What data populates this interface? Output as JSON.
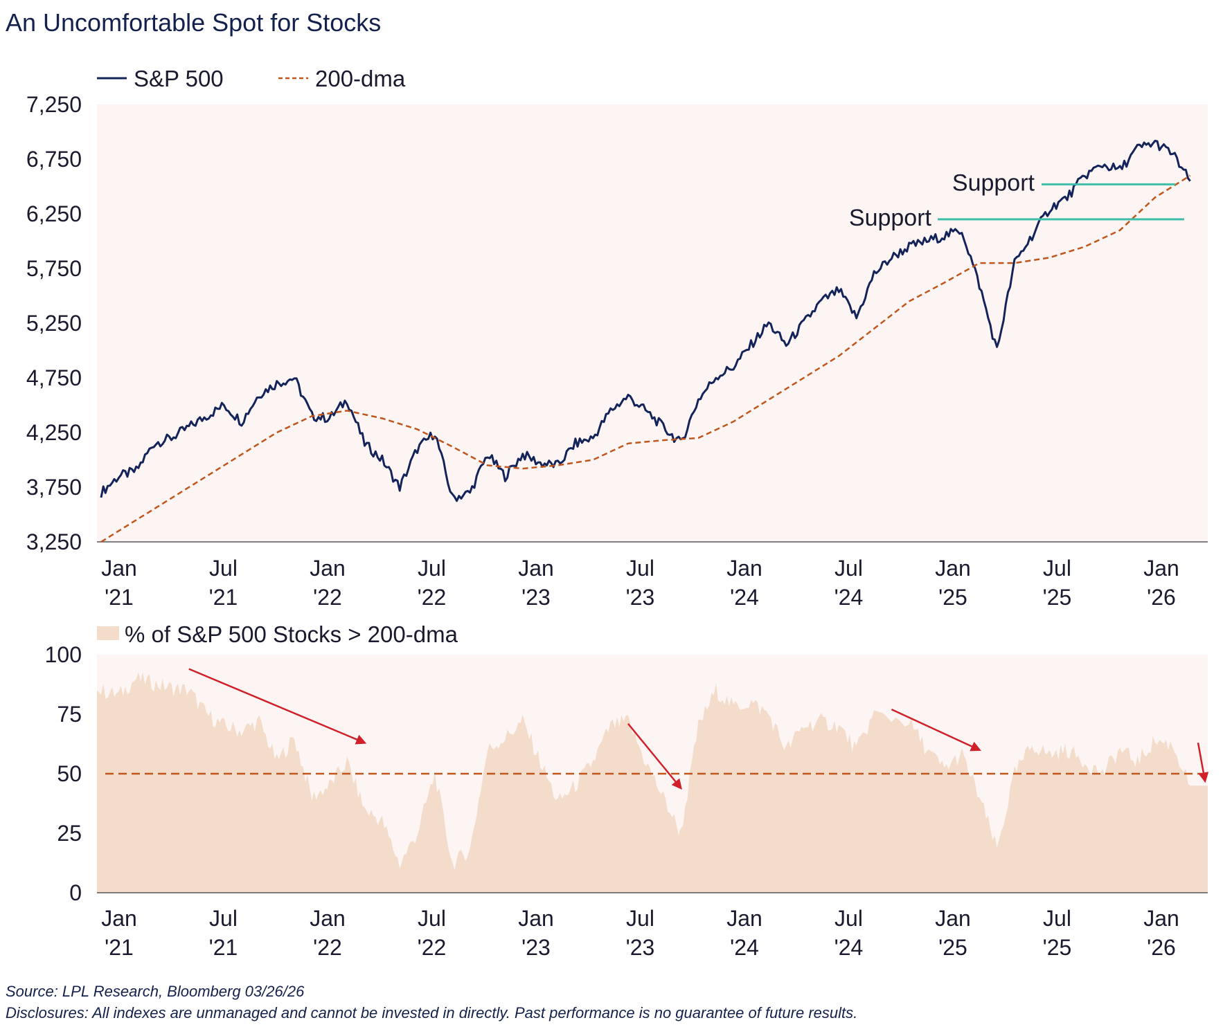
{
  "title": "An Uncomfortable Spot for Stocks",
  "source": "Source: LPL Research, Bloomberg 03/26/26",
  "disclaimer": "Disclosures: All indexes are unmanaged and cannot be invested in directly. Past performance is no guarantee of future results.",
  "colors": {
    "sp500": "#14245a",
    "dma": "#c0561c",
    "support": "#3dbfa8",
    "area": "#f3dcca",
    "plot_bg": "#fcf5f3",
    "arrow": "#d0202a"
  },
  "chart_data": [
    {
      "type": "line",
      "legend": [
        "S&P 500",
        "200-dma"
      ],
      "legend_position": "top-left",
      "y_ticks": [
        "3,250",
        "3,750",
        "4,250",
        "4,750",
        "5,250",
        "5,750",
        "6,250",
        "6,750",
        "7,250"
      ],
      "ylim": [
        3250,
        7250
      ],
      "x_ticks": [
        {
          "m": "Jan",
          "y": "'21"
        },
        {
          "m": "Jul",
          "y": "'21"
        },
        {
          "m": "Jan",
          "y": "'22"
        },
        {
          "m": "Jul",
          "y": "'22"
        },
        {
          "m": "Jan",
          "y": "'23"
        },
        {
          "m": "Jul",
          "y": "'23"
        },
        {
          "m": "Jan",
          "y": "'24"
        },
        {
          "m": "Jul",
          "y": "'24"
        },
        {
          "m": "Jan",
          "y": "'25"
        },
        {
          "m": "Jul",
          "y": "'25"
        },
        {
          "m": "Jan",
          "y": "'26"
        }
      ],
      "xlim": [
        "2021-01",
        "2026-04"
      ],
      "grid": false,
      "series": [
        {
          "name": "S&P 500",
          "x": [
            "2021-01",
            "2021-02",
            "2021-03",
            "2021-04",
            "2021-05",
            "2021-06",
            "2021-07",
            "2021-08",
            "2021-09",
            "2021-10",
            "2021-11",
            "2021-12",
            "2022-01",
            "2022-02",
            "2022-03",
            "2022-04",
            "2022-05",
            "2022-06",
            "2022-07",
            "2022-08",
            "2022-09",
            "2022-10",
            "2022-11",
            "2022-12",
            "2023-01",
            "2023-02",
            "2023-03",
            "2023-04",
            "2023-05",
            "2023-06",
            "2023-07",
            "2023-08",
            "2023-09",
            "2023-10",
            "2023-11",
            "2023-12",
            "2024-01",
            "2024-02",
            "2024-03",
            "2024-04",
            "2024-05",
            "2024-06",
            "2024-07",
            "2024-08",
            "2024-09",
            "2024-10",
            "2024-11",
            "2024-12",
            "2025-01",
            "2025-02",
            "2025-03",
            "2025-04",
            "2025-05",
            "2025-06",
            "2025-07",
            "2025-08",
            "2025-09",
            "2025-10",
            "2025-11",
            "2025-12",
            "2026-01",
            "2026-02",
            "2026-03"
          ],
          "values": [
            3700,
            3850,
            3900,
            4150,
            4200,
            4300,
            4400,
            4500,
            4350,
            4600,
            4700,
            4750,
            4400,
            4380,
            4550,
            4150,
            4000,
            3750,
            4100,
            4250,
            3650,
            3700,
            4050,
            3850,
            4050,
            3970,
            3950,
            4150,
            4200,
            4450,
            4580,
            4450,
            4300,
            4150,
            4550,
            4760,
            4850,
            5050,
            5250,
            5050,
            5250,
            5450,
            5550,
            5300,
            5700,
            5850,
            5950,
            6000,
            6050,
            6100,
            5600,
            5000,
            5800,
            6050,
            6300,
            6400,
            6600,
            6700,
            6650,
            6850,
            6900,
            6800,
            6550
          ]
        },
        {
          "name": "200-dma",
          "x": [
            "2021-01",
            "2021-03",
            "2021-05",
            "2021-07",
            "2021-09",
            "2021-11",
            "2022-01",
            "2022-03",
            "2022-05",
            "2022-07",
            "2022-09",
            "2022-11",
            "2023-01",
            "2023-03",
            "2023-05",
            "2023-07",
            "2023-09",
            "2023-11",
            "2024-01",
            "2024-03",
            "2024-05",
            "2024-07",
            "2024-09",
            "2024-11",
            "2025-01",
            "2025-03",
            "2025-05",
            "2025-07",
            "2025-09",
            "2025-11",
            "2026-01",
            "2026-03"
          ],
          "values": [
            3250,
            3450,
            3650,
            3850,
            4050,
            4250,
            4400,
            4450,
            4380,
            4280,
            4120,
            3950,
            3920,
            3950,
            4000,
            4150,
            4180,
            4200,
            4350,
            4550,
            4750,
            4950,
            5200,
            5450,
            5620,
            5800,
            5800,
            5850,
            5950,
            6100,
            6400,
            6600
          ]
        }
      ],
      "annotations": [
        {
          "text": "Support",
          "value": 6520
        },
        {
          "text": "Support",
          "value": 6200
        }
      ]
    },
    {
      "type": "area",
      "legend": [
        "% of S&P 500 Stocks > 200-dma"
      ],
      "legend_position": "top-left",
      "y_ticks": [
        "0",
        "25",
        "50",
        "75",
        "100"
      ],
      "ylim": [
        0,
        100
      ],
      "x_ticks": [
        {
          "m": "Jan",
          "y": "'21"
        },
        {
          "m": "Jul",
          "y": "'21"
        },
        {
          "m": "Jan",
          "y": "'22"
        },
        {
          "m": "Jul",
          "y": "'22"
        },
        {
          "m": "Jan",
          "y": "'23"
        },
        {
          "m": "Jul",
          "y": "'23"
        },
        {
          "m": "Jan",
          "y": "'24"
        },
        {
          "m": "Jul",
          "y": "'24"
        },
        {
          "m": "Jan",
          "y": "'25"
        },
        {
          "m": "Jul",
          "y": "'25"
        },
        {
          "m": "Jan",
          "y": "'26"
        }
      ],
      "xlim": [
        "2021-01",
        "2026-04"
      ],
      "reference_line": 50,
      "series": [
        {
          "name": "% of S&P 500 Stocks > 200-dma",
          "x": [
            "2021-01",
            "2021-02",
            "2021-03",
            "2021-04",
            "2021-05",
            "2021-06",
            "2021-07",
            "2021-08",
            "2021-09",
            "2021-10",
            "2021-11",
            "2021-12",
            "2022-01",
            "2022-02",
            "2022-03",
            "2022-04",
            "2022-05",
            "2022-06",
            "2022-07",
            "2022-08",
            "2022-09",
            "2022-10",
            "2022-11",
            "2022-12",
            "2023-01",
            "2023-02",
            "2023-03",
            "2023-04",
            "2023-05",
            "2023-06",
            "2023-07",
            "2023-08",
            "2023-09",
            "2023-10",
            "2023-11",
            "2023-12",
            "2024-01",
            "2024-02",
            "2024-03",
            "2024-04",
            "2024-05",
            "2024-06",
            "2024-07",
            "2024-08",
            "2024-09",
            "2024-11",
            "2024-12",
            "2025-01",
            "2025-02",
            "2025-03",
            "2025-04",
            "2025-05",
            "2025-06",
            "2025-07",
            "2025-08",
            "2025-09",
            "2025-10",
            "2025-11",
            "2025-12",
            "2026-01",
            "2026-02",
            "2026-03"
          ],
          "values": [
            85,
            83,
            90,
            88,
            86,
            85,
            75,
            70,
            68,
            72,
            55,
            65,
            40,
            45,
            55,
            35,
            30,
            12,
            25,
            50,
            12,
            18,
            60,
            65,
            72,
            55,
            38,
            45,
            55,
            70,
            72,
            55,
            40,
            25,
            70,
            85,
            78,
            80,
            75,
            60,
            70,
            72,
            70,
            60,
            75,
            72,
            60,
            52,
            58,
            40,
            18,
            50,
            62,
            58,
            60,
            55,
            50,
            60,
            55,
            64,
            62,
            45
          ]
        }
      ],
      "annotations": [
        {
          "type": "arrow",
          "from": [
            "2021-06",
            94
          ],
          "to": [
            "2022-04",
            63
          ]
        },
        {
          "type": "arrow",
          "from": [
            "2023-07",
            71
          ],
          "to": [
            "2023-10",
            44
          ]
        },
        {
          "type": "arrow",
          "from": [
            "2024-10",
            77
          ],
          "to": [
            "2025-03",
            60
          ]
        },
        {
          "type": "arrow",
          "from": [
            "2026-03",
            63
          ],
          "to": [
            "2026-03",
            47
          ]
        }
      ]
    }
  ]
}
